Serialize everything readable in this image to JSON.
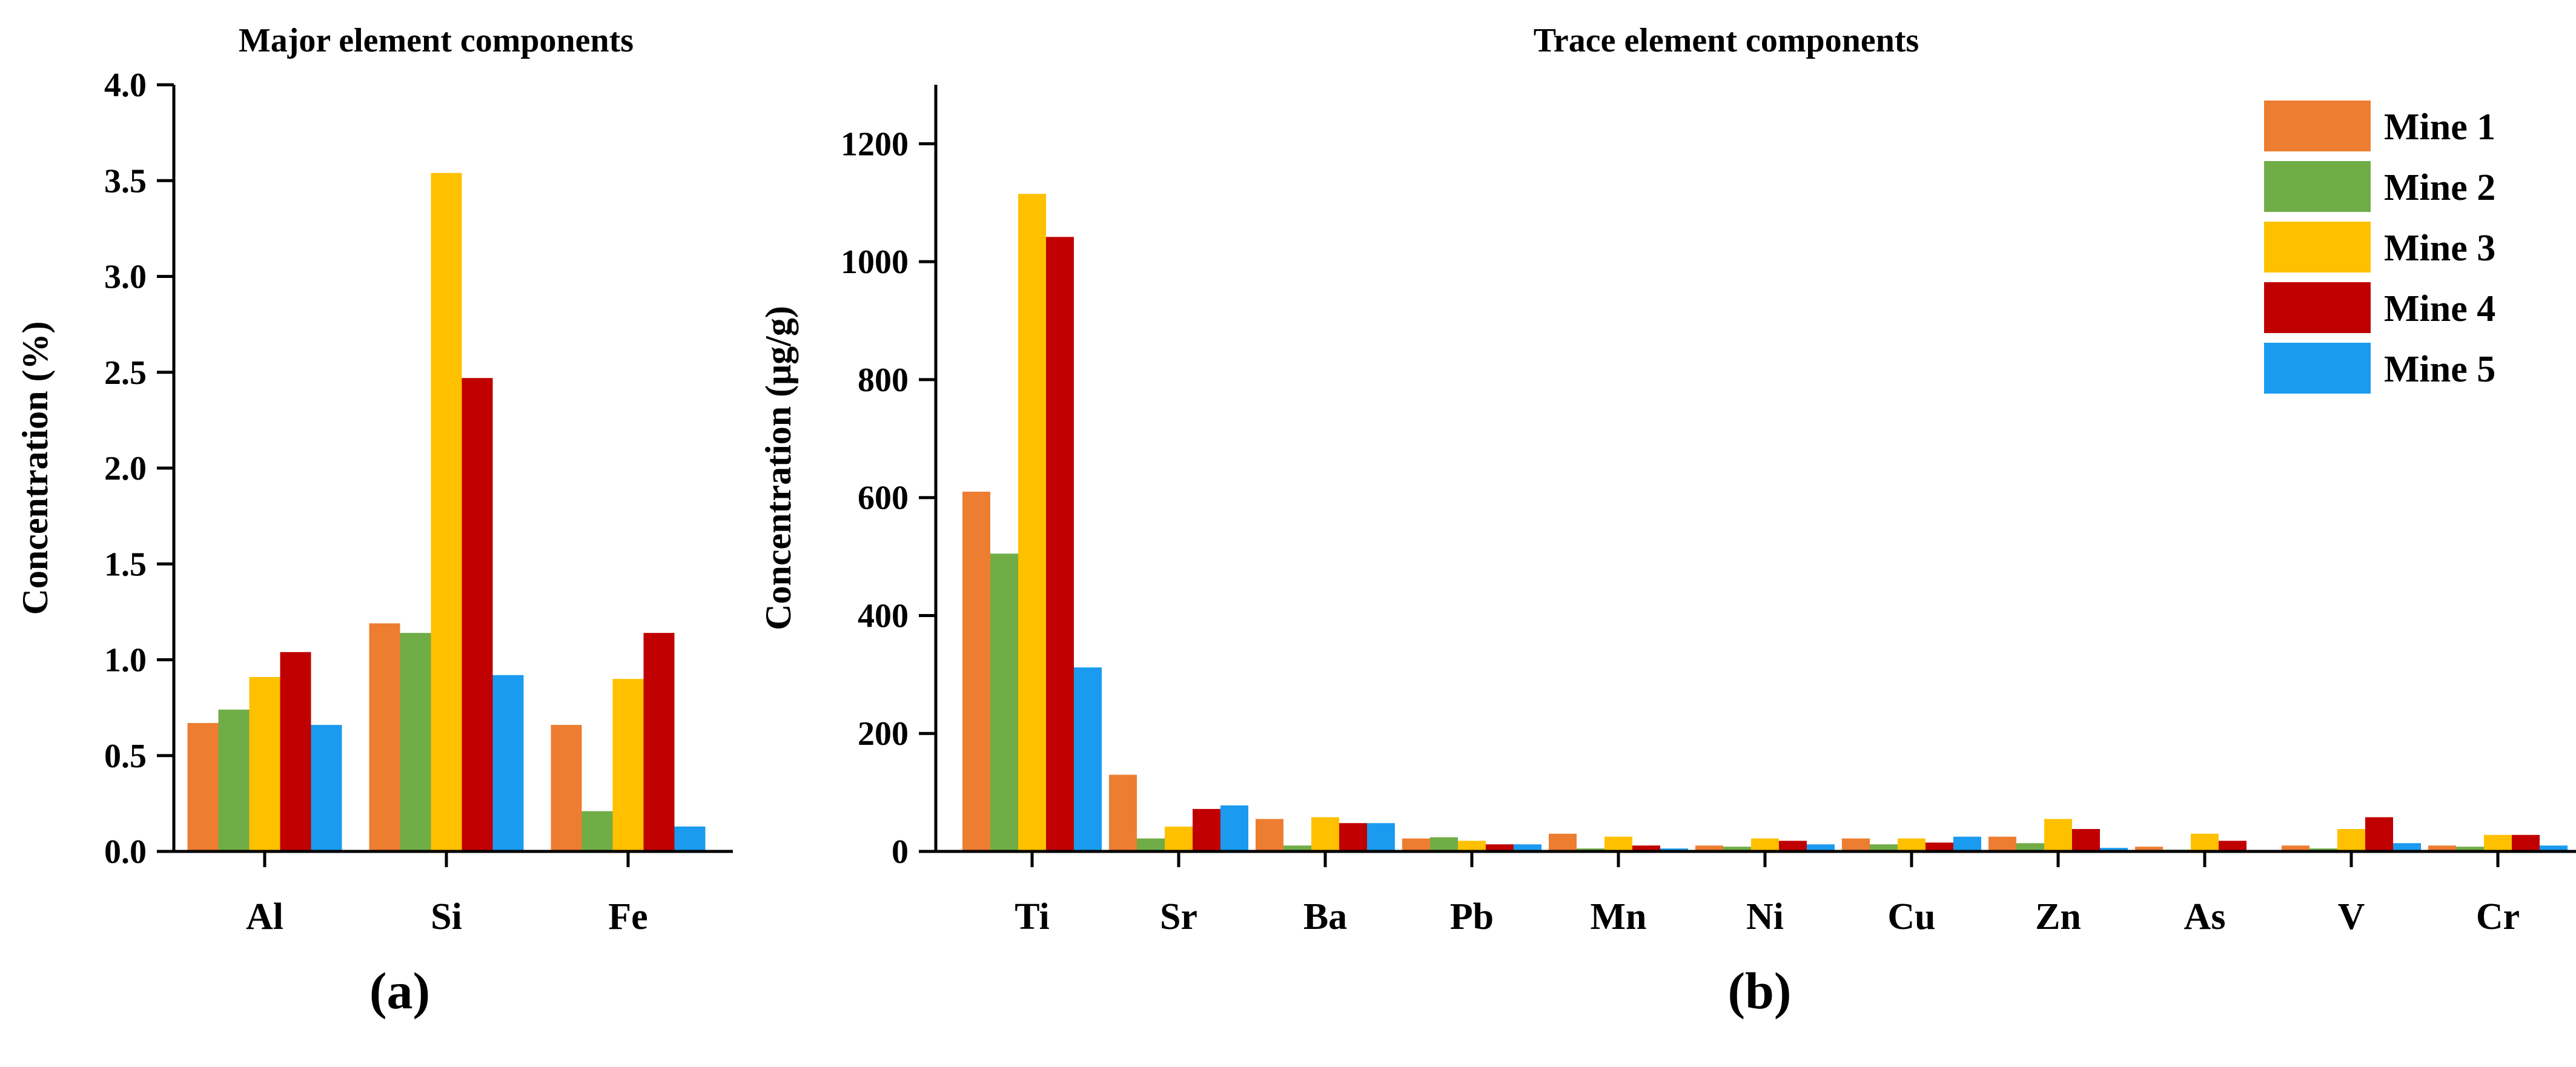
{
  "series_colors": [
    "#ed7d31",
    "#70ad47",
    "#ffc000",
    "#c00000",
    "#1a9bf0"
  ],
  "legend": [
    "Mine 1",
    "Mine 2",
    "Mine 3",
    "Mine 4",
    "Mine 5"
  ],
  "chart_data": [
    {
      "type": "bar",
      "panel_label": "(a)",
      "title": "Major element components",
      "ylabel": "Concentration (%)",
      "xlabel": "",
      "ylim": [
        0,
        4.0
      ],
      "yticks": [
        "0.0",
        "0.5",
        "1.0",
        "1.5",
        "2.0",
        "2.5",
        "3.0",
        "3.5",
        "4.0"
      ],
      "categories": [
        "Al",
        "Si",
        "Fe"
      ],
      "series": [
        {
          "name": "Mine 1",
          "values": [
            0.67,
            1.19,
            0.66
          ]
        },
        {
          "name": "Mine 2",
          "values": [
            0.74,
            1.14,
            0.21
          ]
        },
        {
          "name": "Mine 3",
          "values": [
            0.91,
            3.54,
            0.9
          ]
        },
        {
          "name": "Mine 4",
          "values": [
            1.04,
            2.47,
            1.14
          ]
        },
        {
          "name": "Mine 5",
          "values": [
            0.66,
            0.92,
            0.13
          ]
        }
      ],
      "grid": false
    },
    {
      "type": "bar",
      "panel_label": "(b)",
      "title": "Trace element components",
      "ylabel": "Concentration (μg/g)",
      "xlabel": "",
      "ylim": [
        0,
        1300
      ],
      "yticks": [
        "0",
        "200",
        "400",
        "600",
        "800",
        "1000",
        "1200"
      ],
      "categories": [
        "Ti",
        "Sr",
        "Ba",
        "Pb",
        "Mn",
        "Ni",
        "Cu",
        "Zn",
        "As",
        "V",
        "Cr"
      ],
      "series": [
        {
          "name": "Mine 1",
          "values": [
            610,
            130,
            55,
            22,
            30,
            10,
            22,
            25,
            8,
            10,
            10
          ]
        },
        {
          "name": "Mine 2",
          "values": [
            505,
            22,
            10,
            24,
            5,
            8,
            12,
            14,
            3,
            5,
            8
          ]
        },
        {
          "name": "Mine 3",
          "values": [
            1115,
            42,
            58,
            18,
            25,
            22,
            22,
            55,
            30,
            38,
            28
          ]
        },
        {
          "name": "Mine 4",
          "values": [
            1042,
            72,
            48,
            12,
            10,
            18,
            15,
            38,
            18,
            58,
            28
          ]
        },
        {
          "name": "Mine 5",
          "values": [
            312,
            78,
            48,
            12,
            5,
            12,
            25,
            6,
            2,
            14,
            10
          ]
        }
      ],
      "legend_position": "top-right",
      "grid": false
    }
  ]
}
